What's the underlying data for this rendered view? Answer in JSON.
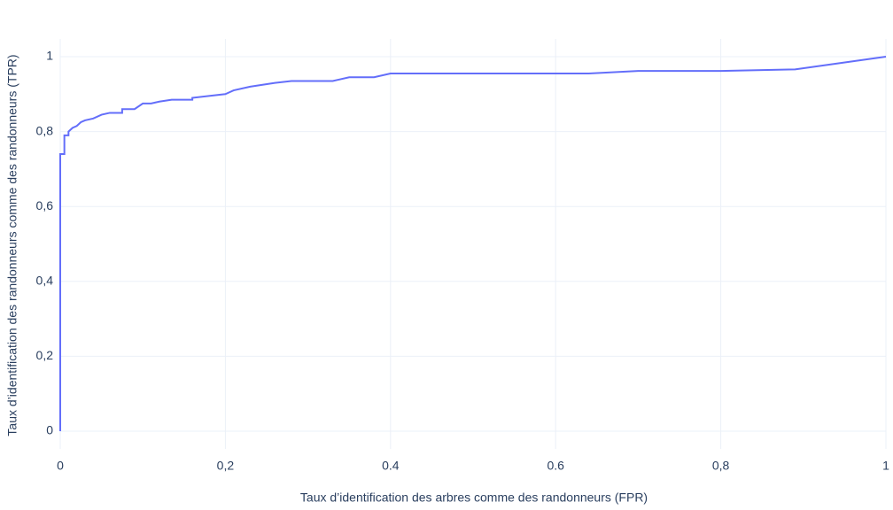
{
  "chart_data": {
    "type": "line",
    "xlabel": "Taux d’identification des arbres comme des randonneurs (FPR)",
    "ylabel": "Taux d’identification des randonneurs comme des randonneurs (TPR)",
    "x": [
      0,
      0,
      0.005,
      0.005,
      0.01,
      0.01,
      0.015,
      0.02,
      0.025,
      0.03,
      0.04,
      0.05,
      0.06,
      0.075,
      0.075,
      0.09,
      0.1,
      0.11,
      0.12,
      0.135,
      0.16,
      0.16,
      0.18,
      0.2,
      0.21,
      0.23,
      0.26,
      0.28,
      0.33,
      0.35,
      0.38,
      0.4,
      0.64,
      0.7,
      0.8,
      0.89,
      1
    ],
    "values": [
      0,
      0.74,
      0.74,
      0.79,
      0.79,
      0.8,
      0.81,
      0.815,
      0.825,
      0.83,
      0.835,
      0.845,
      0.85,
      0.85,
      0.86,
      0.86,
      0.875,
      0.875,
      0.88,
      0.885,
      0.885,
      0.89,
      0.895,
      0.9,
      0.91,
      0.92,
      0.93,
      0.935,
      0.935,
      0.945,
      0.945,
      0.955,
      0.955,
      0.962,
      0.962,
      0.966,
      1
    ],
    "color": "#636efa",
    "xlim": [
      0,
      1
    ],
    "ylim": [
      0,
      1
    ],
    "xticks": [
      0,
      {
        "value": 0.2,
        "label": "0,2"
      },
      0.4,
      0.6,
      {
        "value": 0.8,
        "label": "0,8"
      },
      1
    ],
    "yticks": [
      0,
      {
        "value": 0.2,
        "label": "0,2"
      },
      {
        "value": 0.4,
        "label": "0,4"
      },
      {
        "value": 0.6,
        "label": "0,6"
      },
      {
        "value": 0.8,
        "label": "0,8"
      },
      1
    ],
    "grid": true
  }
}
